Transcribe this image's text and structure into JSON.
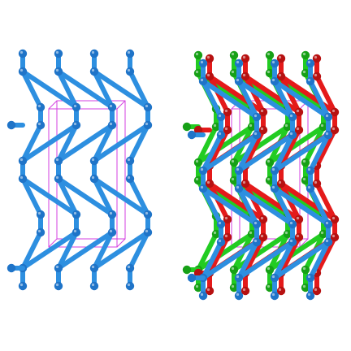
{
  "figure": {
    "panels": [
      {
        "name": "single-network",
        "networks": [
          "blue"
        ]
      },
      {
        "name": "interpenetrated-networks",
        "networks": [
          "green",
          "red",
          "blue"
        ]
      }
    ],
    "colors": {
      "blue": "#2d8fe0",
      "blue_node": "#1f74c8",
      "green": "#22cc22",
      "green_node": "#16a016",
      "red": "#e41a1a",
      "red_node": "#b71111",
      "cell": "#d33fe0",
      "background": "#ffffff"
    }
  }
}
